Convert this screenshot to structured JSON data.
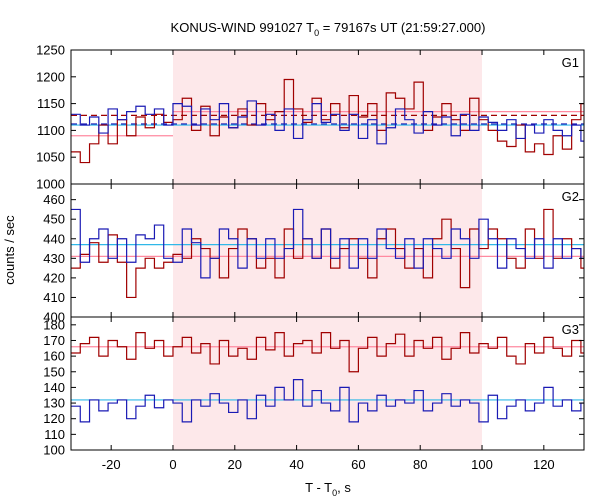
{
  "title": {
    "prefix": "KONUS-WIND 991027 T",
    "subscript": "0",
    "suffix": " = 79167s UT (21:59:27.000)"
  },
  "xlabel": {
    "prefix": "T - T",
    "subscript": "0",
    "suffix": ", s"
  },
  "ylabel": "counts / sec",
  "colors": {
    "red_series": "#a00000",
    "blue_series": "#1a1ab4",
    "red_bg": "#ff8aa0",
    "blue_bg": "#30b8e8",
    "highlight": "#fde8ea",
    "grid": "#c8c8c8"
  },
  "chart_data": [
    {
      "type": "line",
      "panel": "G1",
      "step": true,
      "x": [
        -33,
        -30,
        -27,
        -24,
        -21,
        -18,
        -15,
        -12,
        -9,
        -6,
        -3,
        0,
        3,
        6,
        9,
        12,
        15,
        18,
        21,
        24,
        27,
        30,
        33,
        36,
        39,
        42,
        45,
        48,
        51,
        54,
        57,
        60,
        63,
        66,
        69,
        72,
        75,
        78,
        81,
        84,
        87,
        90,
        93,
        96,
        99,
        102,
        105,
        108,
        111,
        114,
        117,
        120,
        123,
        126,
        129,
        132
      ],
      "xlim": [
        -33,
        133
      ],
      "ylim": [
        1000,
        1250
      ],
      "yticks": [
        1000,
        1050,
        1100,
        1150,
        1200,
        1250
      ],
      "highlight_range": [
        0,
        100
      ],
      "series": [
        {
          "color": "red",
          "values": [
            1060,
            1040,
            1075,
            1110,
            1075,
            1120,
            1090,
            1125,
            1105,
            1130,
            1115,
            1120,
            1160,
            1100,
            1145,
            1090,
            1125,
            1105,
            1140,
            1110,
            1150,
            1120,
            1135,
            1195,
            1140,
            1115,
            1160,
            1120,
            1150,
            1105,
            1165,
            1125,
            1150,
            1100,
            1170,
            1160,
            1140,
            1190,
            1100,
            1125,
            1150,
            1120,
            1100,
            1160,
            1120,
            1100,
            1080,
            1070,
            1110,
            1060,
            1075,
            1055,
            1090,
            1065,
            1120,
            1150
          ]
        },
        {
          "color": "blue",
          "values": [
            1130,
            1110,
            1125,
            1095,
            1140,
            1120,
            1135,
            1145,
            1130,
            1140,
            1110,
            1150,
            1145,
            1110,
            1140,
            1120,
            1150,
            1105,
            1125,
            1155,
            1110,
            1130,
            1100,
            1140,
            1085,
            1120,
            1150,
            1115,
            1130,
            1100,
            1130,
            1085,
            1120,
            1075,
            1105,
            1140,
            1120,
            1095,
            1135,
            1110,
            1125,
            1090,
            1130,
            1100,
            1125,
            1115,
            1100,
            1120,
            1085,
            1110,
            1095,
            1120,
            1100,
            1090,
            1110,
            1080
          ]
        }
      ],
      "reference_lines": [
        {
          "color": "red",
          "style": "dashed",
          "value": 1128,
          "range": [
            -33,
            133
          ]
        },
        {
          "color": "red_bg",
          "style": "solid",
          "value": 1090,
          "range": [
            -33,
            0
          ]
        },
        {
          "color": "red_bg",
          "style": "solid",
          "value": 1135,
          "range": [
            0,
            133
          ]
        },
        {
          "color": "blue",
          "style": "dashed",
          "value": 1112,
          "range": [
            -33,
            133
          ]
        },
        {
          "color": "blue_bg",
          "style": "solid",
          "value": 1110,
          "range": [
            -33,
            133
          ]
        }
      ]
    },
    {
      "type": "line",
      "panel": "G2",
      "step": true,
      "x": [
        -33,
        -30,
        -27,
        -24,
        -21,
        -18,
        -15,
        -12,
        -9,
        -6,
        -3,
        0,
        3,
        6,
        9,
        12,
        15,
        18,
        21,
        24,
        27,
        30,
        33,
        36,
        39,
        42,
        45,
        48,
        51,
        54,
        57,
        60,
        63,
        66,
        69,
        72,
        75,
        78,
        81,
        84,
        87,
        90,
        93,
        96,
        99,
        102,
        105,
        108,
        111,
        114,
        117,
        120,
        123,
        126,
        129,
        132
      ],
      "xlim": [
        -33,
        133
      ],
      "ylim": [
        400,
        468
      ],
      "yticks": [
        400,
        410,
        420,
        430,
        440,
        450,
        460
      ],
      "highlight_range": [
        0,
        100
      ],
      "series": [
        {
          "color": "red",
          "values": [
            425,
            432,
            438,
            428,
            442,
            428,
            410,
            425,
            430,
            425,
            428,
            432,
            430,
            440,
            435,
            430,
            420,
            435,
            445,
            440,
            425,
            430,
            420,
            445,
            430,
            440,
            430,
            445,
            425,
            435,
            440,
            430,
            420,
            440,
            445,
            435,
            425,
            435,
            420,
            440,
            450,
            435,
            415,
            445,
            435,
            445,
            440,
            430,
            425,
            445,
            430,
            455,
            430,
            440,
            435,
            425
          ]
        },
        {
          "color": "blue",
          "values": [
            455,
            428,
            440,
            445,
            430,
            440,
            428,
            442,
            440,
            447,
            430,
            428,
            445,
            438,
            420,
            430,
            445,
            440,
            425,
            440,
            430,
            440,
            430,
            435,
            455,
            440,
            430,
            445,
            430,
            440,
            425,
            440,
            430,
            445,
            435,
            430,
            440,
            425,
            440,
            435,
            430,
            445,
            440,
            430,
            450,
            440,
            425,
            440,
            435,
            430,
            440,
            425,
            440,
            430,
            435,
            430
          ]
        }
      ],
      "reference_lines": [
        {
          "color": "red_bg",
          "style": "solid",
          "value": 431,
          "range": [
            -33,
            133
          ]
        },
        {
          "color": "blue_bg",
          "style": "solid",
          "value": 437,
          "range": [
            -33,
            133
          ]
        }
      ]
    },
    {
      "type": "line",
      "panel": "G3",
      "step": true,
      "x": [
        -33,
        -30,
        -27,
        -24,
        -21,
        -18,
        -15,
        -12,
        -9,
        -6,
        -3,
        0,
        3,
        6,
        9,
        12,
        15,
        18,
        21,
        24,
        27,
        30,
        33,
        36,
        39,
        42,
        45,
        48,
        51,
        54,
        57,
        60,
        63,
        66,
        69,
        72,
        75,
        78,
        81,
        84,
        87,
        90,
        93,
        96,
        99,
        102,
        105,
        108,
        111,
        114,
        117,
        120,
        123,
        126,
        129,
        132
      ],
      "xlim": [
        -33,
        133
      ],
      "ylim": [
        100,
        185
      ],
      "yticks": [
        100,
        110,
        120,
        130,
        140,
        150,
        160,
        170,
        180
      ],
      "highlight_range": [
        0,
        100
      ],
      "series": [
        {
          "color": "red",
          "values": [
            162,
            168,
            172,
            160,
            170,
            166,
            158,
            175,
            165,
            170,
            160,
            166,
            172,
            162,
            168,
            155,
            170,
            160,
            165,
            158,
            172,
            164,
            175,
            160,
            168,
            170,
            162,
            175,
            165,
            170,
            150,
            165,
            172,
            160,
            168,
            174,
            160,
            170,
            165,
            172,
            158,
            165,
            175,
            162,
            168,
            165,
            172,
            160,
            155,
            168,
            162,
            172,
            165,
            160,
            170,
            162
          ]
        },
        {
          "color": "blue",
          "values": [
            128,
            118,
            132,
            125,
            130,
            132,
            120,
            128,
            135,
            127,
            132,
            130,
            118,
            132,
            128,
            136,
            130,
            124,
            132,
            120,
            135,
            128,
            140,
            132,
            145,
            128,
            138,
            130,
            125,
            140,
            118,
            130,
            125,
            135,
            128,
            132,
            130,
            138,
            125,
            130,
            136,
            128,
            132,
            130,
            118,
            135,
            120,
            128,
            132,
            125,
            130,
            140,
            128,
            132,
            125,
            130
          ]
        }
      ],
      "reference_lines": [
        {
          "color": "red_bg",
          "style": "solid",
          "value": 166,
          "range": [
            -33,
            133
          ]
        },
        {
          "color": "blue_bg",
          "style": "solid",
          "value": 132,
          "range": [
            -33,
            133
          ]
        }
      ]
    }
  ],
  "x_axis": {
    "ticks": [
      -20,
      0,
      20,
      40,
      60,
      80,
      100,
      120
    ]
  }
}
